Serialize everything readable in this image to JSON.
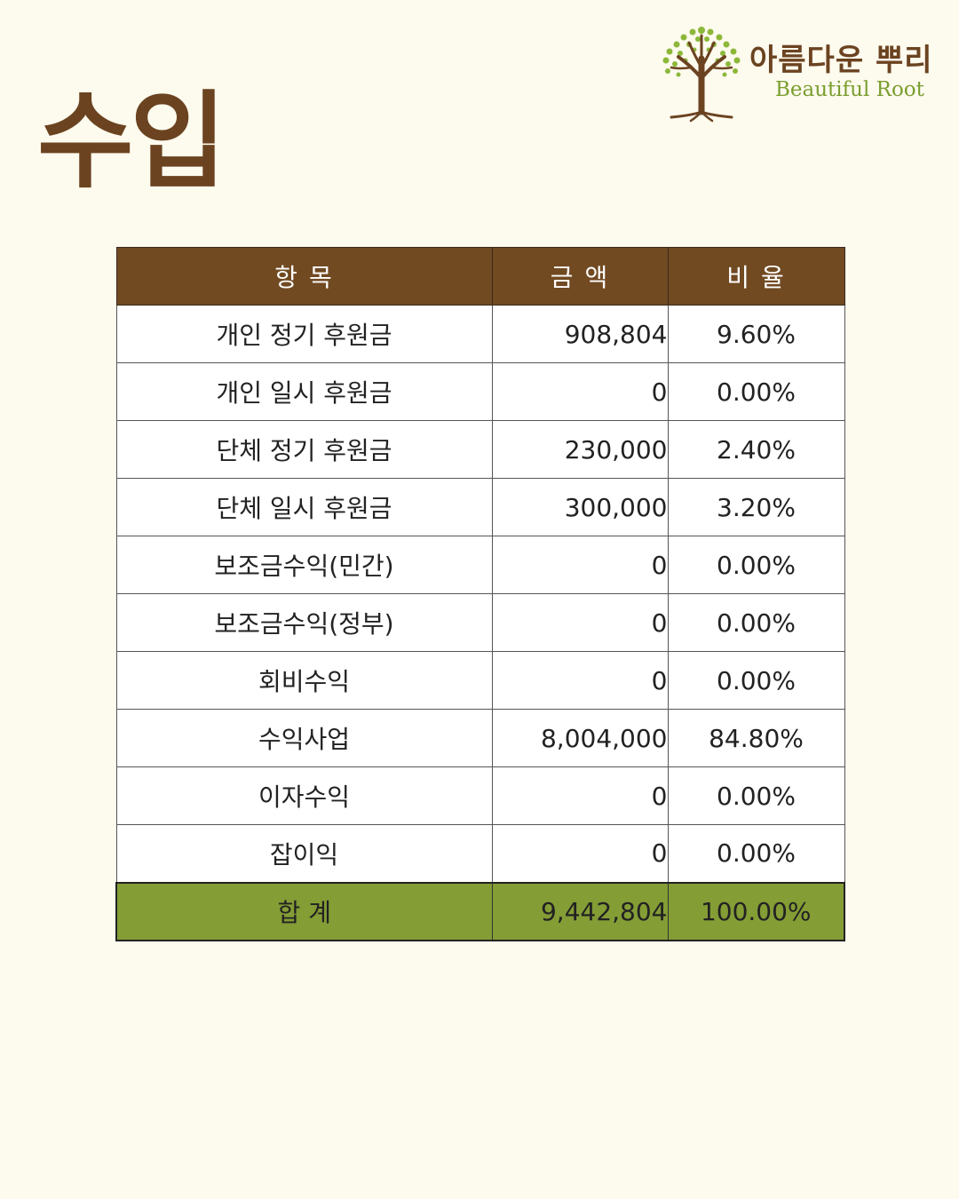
{
  "page": {
    "title": "수입"
  },
  "logo": {
    "name_ko": "아름다운 뿌리",
    "name_en": "Beautiful Root",
    "icon": "tree-icon",
    "trunk_color": "#6b4320",
    "leaf_color": "#8cb83a"
  },
  "table": {
    "headers": {
      "item": "항 목",
      "amount": "금 액",
      "ratio": "비 율"
    },
    "rows": [
      {
        "item": "개인 정기 후원금",
        "amount": "908,804",
        "ratio": "9.60%"
      },
      {
        "item": "개인 일시 후원금",
        "amount": "0",
        "ratio": "0.00%"
      },
      {
        "item": "단체 정기 후원금",
        "amount": "230,000",
        "ratio": "2.40%"
      },
      {
        "item": "단체 일시 후원금",
        "amount": "300,000",
        "ratio": "3.20%"
      },
      {
        "item": "보조금수익(민간)",
        "amount": "0",
        "ratio": "0.00%"
      },
      {
        "item": "보조금수익(정부)",
        "amount": "0",
        "ratio": "0.00%"
      },
      {
        "item": "회비수익",
        "amount": "0",
        "ratio": "0.00%"
      },
      {
        "item": "수익사업",
        "amount": "8,004,000",
        "ratio": "84.80%"
      },
      {
        "item": "이자수익",
        "amount": "0",
        "ratio": "0.00%"
      },
      {
        "item": "잡이익",
        "amount": "0",
        "ratio": "0.00%"
      }
    ],
    "total": {
      "item": "합 계",
      "amount": "9,442,804",
      "ratio": "100.00%"
    },
    "colors": {
      "header_bg": "#714a22",
      "total_bg": "#849d35"
    }
  }
}
